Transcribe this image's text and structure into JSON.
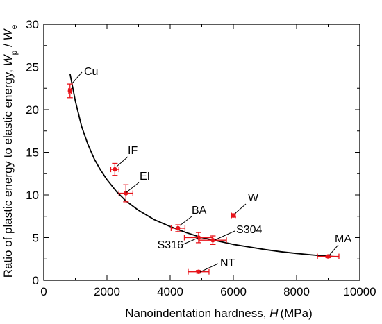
{
  "chart_data": {
    "type": "scatter",
    "x_axis": {
      "label_prefix": "Nanoindentation hardness, ",
      "label_var": "H",
      "label_unit": "(MPa)",
      "range": [
        0,
        10000
      ],
      "ticks": [
        0,
        2000,
        4000,
        6000,
        8000,
        10000
      ]
    },
    "y_axis": {
      "label_prefix": "Ratio of plastic energy to elastic energy, ",
      "label_var1": "W",
      "label_sub1": "p",
      "label_sep": " / ",
      "label_var2": "W",
      "label_sub2": "e",
      "range": [
        0,
        30
      ],
      "ticks": [
        0,
        5,
        10,
        15,
        20,
        25,
        30
      ]
    },
    "points": [
      {
        "name": "Cu",
        "x": 830,
        "y": 22.2,
        "xerr": 40,
        "yerr": 0.8
      },
      {
        "name": "IF",
        "x": 2250,
        "y": 13.0,
        "xerr": 130,
        "yerr": 0.7
      },
      {
        "name": "EI",
        "x": 2600,
        "y": 10.2,
        "xerr": 220,
        "yerr": 1.0
      },
      {
        "name": "BA",
        "x": 4250,
        "y": 6.1,
        "xerr": 220,
        "yerr": 0.4
      },
      {
        "name": "W",
        "x": 6000,
        "y": 7.6,
        "xerr": 60,
        "yerr": 0.2
      },
      {
        "name": "S316",
        "x": 4900,
        "y": 5.0,
        "xerr": 450,
        "yerr": 0.6
      },
      {
        "name": "S304",
        "x": 5350,
        "y": 4.7,
        "xerr": 430,
        "yerr": 0.5
      },
      {
        "name": "NT",
        "x": 4900,
        "y": 1.0,
        "xerr": 330,
        "yerr": 0.15
      },
      {
        "name": "MA",
        "x": 9000,
        "y": 2.8,
        "xerr": 340,
        "yerr": 0.15
      }
    ],
    "fit_curve": {
      "x": [
        830,
        1000,
        1200,
        1400,
        1600,
        1800,
        2000,
        2300,
        2600,
        3000,
        3500,
        4000,
        4500,
        5000,
        5500,
        6000,
        6500,
        7000,
        7500,
        8000,
        8500,
        9000,
        9300
      ],
      "y": [
        24.2,
        21.0,
        18.0,
        15.9,
        14.2,
        12.9,
        11.8,
        10.4,
        9.3,
        8.2,
        7.1,
        6.3,
        5.6,
        5.0,
        4.6,
        4.2,
        3.9,
        3.6,
        3.35,
        3.15,
        2.97,
        2.82,
        2.75
      ]
    },
    "colors": {
      "points": "#e8141b",
      "curve": "#000000",
      "axis": "#000000"
    },
    "grid": false,
    "legend": "none"
  }
}
